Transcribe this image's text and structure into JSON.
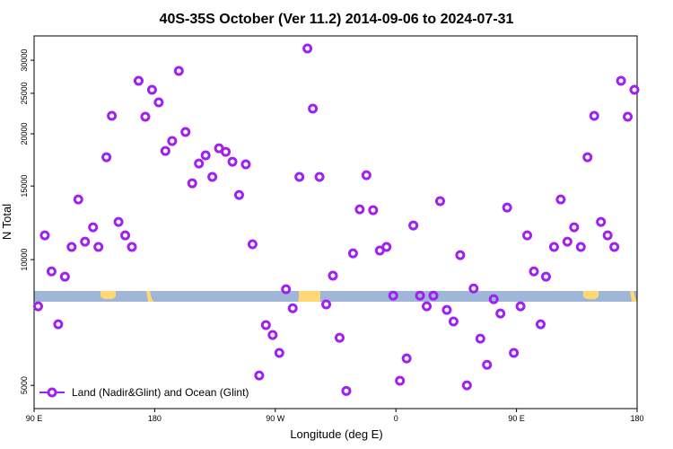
{
  "chart_data": {
    "type": "scatter",
    "title": "40S-35S October (Ver 11.2)   2014-09-06 to 2024-07-31",
    "x_label": "Longitude (deg E)",
    "y_label": "N Total",
    "log_y": true,
    "xlim": [
      90,
      540
    ],
    "xticks": [
      {
        "value": 90,
        "label": "90 E"
      },
      {
        "value": 180,
        "label": "180"
      },
      {
        "value": 270,
        "label": "90 W"
      },
      {
        "value": 360,
        "label": "0"
      },
      {
        "value": 450,
        "label": "90 E"
      },
      {
        "value": 540,
        "label": "180"
      }
    ],
    "ylim": [
      4400,
      34300
    ],
    "yticks": [
      5000,
      10000,
      15000,
      20000,
      25000,
      30000
    ],
    "legend": "bottom-left",
    "series": [
      {
        "name": "Land (Nadir&Glint) and Ocean (Glint)",
        "color": "#a020f0",
        "x": [
          93,
          98,
          103,
          108,
          113,
          118,
          123,
          128,
          134,
          138,
          144,
          148,
          153,
          158,
          163,
          168,
          173,
          178,
          183,
          188,
          193,
          198,
          203,
          208,
          213,
          218,
          223,
          228,
          233,
          238,
          248,
          243,
          253,
          258,
          263,
          268,
          273,
          278,
          283,
          288,
          294,
          298,
          303,
          308,
          313,
          318,
          323,
          328,
          333,
          338,
          343,
          348,
          353,
          358,
          363,
          368,
          373,
          378,
          383,
          388,
          393,
          398,
          403,
          408,
          413,
          418,
          423,
          428,
          433,
          438,
          443,
          448,
          453,
          458,
          463,
          468,
          472,
          478,
          483,
          488,
          493,
          498,
          503,
          508,
          513,
          518,
          523,
          528,
          533,
          538
        ],
        "values": [
          7730,
          11430,
          9370,
          7000,
          9100,
          10720,
          13930,
          11040,
          11950,
          10720,
          17580,
          22080,
          12310,
          11430,
          10720,
          26780,
          21970,
          25490,
          23780,
          18200,
          19220,
          28280,
          20200,
          15230,
          16980,
          17760,
          15770,
          18470,
          18110,
          17150,
          16900,
          14280,
          10880,
          5280,
          6970,
          6600,
          5980,
          8490,
          7650,
          15770,
          32000,
          22970,
          15770,
          7810,
          9150,
          6500,
          4850,
          10350,
          13190,
          15920,
          13130,
          10510,
          10720,
          8200,
          5130,
          5800,
          12070,
          8200,
          7730,
          8200,
          13800,
          7580,
          7110,
          10250,
          5000,
          8530,
          6470,
          5600,
          8040,
          7430,
          13320,
          5980,
          7730,
          11430,
          9370,
          7000,
          9100,
          10720,
          13930,
          11040,
          11950,
          10720,
          17580,
          22080,
          12310,
          11430,
          10720,
          26780,
          21970,
          25490
        ]
      }
    ]
  }
}
